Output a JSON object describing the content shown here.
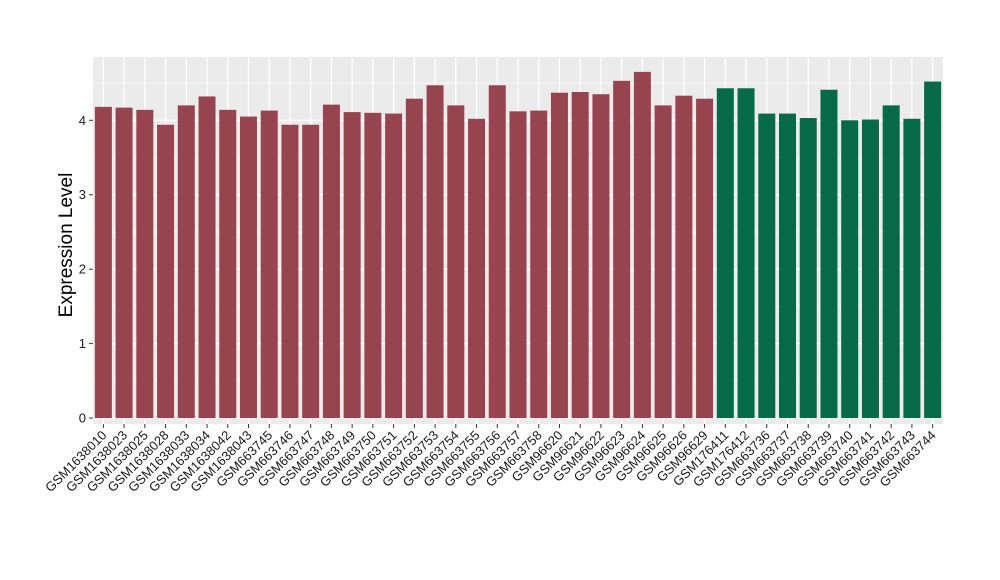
{
  "chart_data": {
    "type": "bar",
    "ylabel": "Expression Level",
    "xlabel": "",
    "ylim": [
      -0.08,
      4.85
    ],
    "yticks": [
      0,
      1,
      2,
      3,
      4
    ],
    "grid": true,
    "legend": "none",
    "colors": {
      "group1": "#984450",
      "group2": "#066947",
      "panel_bg": "#ebebeb",
      "grid": "#ffffff"
    },
    "categories": [
      "GSM1638010",
      "GSM1638023",
      "GSM1638025",
      "GSM1638028",
      "GSM1638033",
      "GSM1638034",
      "GSM1638042",
      "GSM1638043",
      "GSM663745",
      "GSM663746",
      "GSM663747",
      "GSM663748",
      "GSM663749",
      "GSM663750",
      "GSM663751",
      "GSM663752",
      "GSM663753",
      "GSM663754",
      "GSM663755",
      "GSM663756",
      "GSM663757",
      "GSM663758",
      "GSM96620",
      "GSM96621",
      "GSM96622",
      "GSM96623",
      "GSM96624",
      "GSM96625",
      "GSM96626",
      "GSM96629",
      "GSM176411",
      "GSM176412",
      "GSM663736",
      "GSM663737",
      "GSM663738",
      "GSM663739",
      "GSM663740",
      "GSM663741",
      "GSM663742",
      "GSM663743",
      "GSM663744"
    ],
    "values": [
      4.18,
      4.17,
      4.14,
      3.94,
      4.2,
      4.32,
      4.14,
      4.05,
      4.13,
      3.94,
      3.94,
      4.21,
      4.11,
      4.1,
      4.09,
      4.29,
      4.47,
      4.2,
      4.02,
      4.47,
      4.12,
      4.13,
      4.37,
      4.38,
      4.35,
      4.53,
      4.65,
      4.2,
      4.33,
      4.29,
      4.43,
      4.43,
      4.09,
      4.09,
      4.03,
      4.41,
      4.0,
      4.01,
      4.2,
      4.02,
      4.52
    ],
    "groups": [
      1,
      1,
      1,
      1,
      1,
      1,
      1,
      1,
      1,
      1,
      1,
      1,
      1,
      1,
      1,
      1,
      1,
      1,
      1,
      1,
      1,
      1,
      1,
      1,
      1,
      1,
      1,
      1,
      1,
      1,
      2,
      2,
      2,
      2,
      2,
      2,
      2,
      2,
      2,
      2,
      2
    ]
  }
}
